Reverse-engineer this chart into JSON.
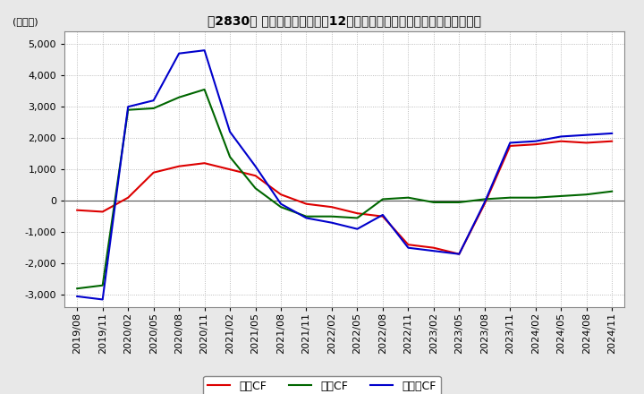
{
  "title": "【2830】 キャッシュフローの12か月移動合計の対前年同期増減額の推移",
  "ylabel": "(百万円)",
  "ylim": [
    -3400,
    5400
  ],
  "yticks": [
    -3000,
    -2000,
    -1000,
    0,
    1000,
    2000,
    3000,
    4000,
    5000
  ],
  "bg_color": "#e8e8e8",
  "plot_bg": "#ffffff",
  "grid_color": "#aaaaaa",
  "dates": [
    "2019/08",
    "2019/11",
    "2020/02",
    "2020/05",
    "2020/08",
    "2020/11",
    "2021/02",
    "2021/05",
    "2021/08",
    "2021/11",
    "2022/02",
    "2022/05",
    "2022/08",
    "2022/11",
    "2023/02",
    "2023/05",
    "2023/08",
    "2023/11",
    "2024/02",
    "2024/05",
    "2024/08",
    "2024/11"
  ],
  "eigyo_cf": [
    -300,
    -350,
    100,
    900,
    1100,
    1200,
    1000,
    800,
    200,
    -100,
    -200,
    -400,
    -500,
    -1400,
    -1500,
    -1700,
    -100,
    1750,
    1800,
    1900,
    1850,
    1900
  ],
  "toshi_cf": [
    -2800,
    -2700,
    2900,
    2950,
    3300,
    3550,
    1400,
    400,
    -200,
    -500,
    -500,
    -550,
    50,
    100,
    -50,
    -50,
    50,
    100,
    100,
    150,
    200,
    300
  ],
  "free_cf": [
    -3050,
    -3150,
    3000,
    3200,
    4700,
    4800,
    2200,
    1100,
    -100,
    -550,
    -700,
    -900,
    -450,
    -1500,
    -1600,
    -1700,
    -50,
    1850,
    1900,
    2050,
    2100,
    2150
  ],
  "eigyo_color": "#dd0000",
  "toshi_color": "#006600",
  "free_color": "#0000cc",
  "legend_labels": [
    "営業CF",
    "投資CF",
    "フリーCF"
  ]
}
